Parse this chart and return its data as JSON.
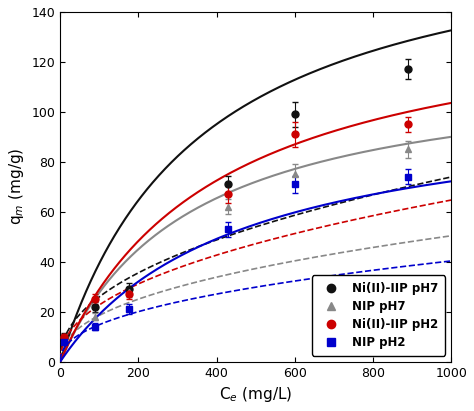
{
  "title": "",
  "xlabel": "C$_e$ (mg/L)",
  "ylabel": "q$_m$ (mg/g)",
  "xlim": [
    0,
    1000
  ],
  "ylim": [
    0,
    140
  ],
  "xticks": [
    0,
    200,
    400,
    600,
    800,
    1000
  ],
  "yticks": [
    0,
    20,
    40,
    60,
    80,
    100,
    120,
    140
  ],
  "series": [
    {
      "label": "Ni(II)-IIP pH7",
      "marker": "o",
      "color": "#111111",
      "x": [
        10,
        90,
        175,
        430,
        600,
        890
      ],
      "y": [
        10,
        22,
        29,
        71,
        99,
        117
      ],
      "yerr": [
        1.5,
        2.0,
        2.5,
        3.5,
        5.0,
        4.0
      ],
      "langmuir_qm": 180.0,
      "langmuir_KL": 0.0028,
      "freundlich_KF": 3.2,
      "freundlich_n": 2.2
    },
    {
      "label": "NIP pH7",
      "marker": "^",
      "color": "#888888",
      "x": [
        10,
        90,
        175,
        430,
        600,
        890
      ],
      "y": [
        9,
        18,
        28,
        62,
        75,
        85
      ],
      "yerr": [
        1.0,
        1.5,
        2.0,
        3.0,
        4.0,
        3.5
      ],
      "langmuir_qm": 120.0,
      "langmuir_KL": 0.003,
      "freundlich_KF": 2.5,
      "freundlich_n": 2.3
    },
    {
      "label": "Ni(II)-IIP pH2",
      "marker": "o",
      "color": "#cc0000",
      "x": [
        10,
        90,
        175,
        430,
        600,
        890
      ],
      "y": [
        10,
        25,
        27,
        67,
        91,
        95
      ],
      "yerr": [
        1.0,
        2.0,
        2.0,
        3.5,
        5.0,
        3.0
      ],
      "langmuir_qm": 145.0,
      "langmuir_KL": 0.0025,
      "freundlich_KF": 2.8,
      "freundlich_n": 2.2
    },
    {
      "label": "NIP pH2",
      "marker": "s",
      "color": "#0000cc",
      "x": [
        10,
        90,
        175,
        430,
        600,
        890
      ],
      "y": [
        8,
        14,
        21,
        53,
        71,
        74
      ],
      "yerr": [
        1.0,
        1.5,
        2.0,
        3.0,
        3.5,
        3.0
      ],
      "langmuir_qm": 105.0,
      "langmuir_KL": 0.0022,
      "freundlich_KF": 2.0,
      "freundlich_n": 2.3
    }
  ],
  "figsize": [
    4.74,
    4.11
  ],
  "dpi": 100,
  "background_color": "#ffffff",
  "legend_loc": "lower right",
  "legend_fontsize": 8.5
}
